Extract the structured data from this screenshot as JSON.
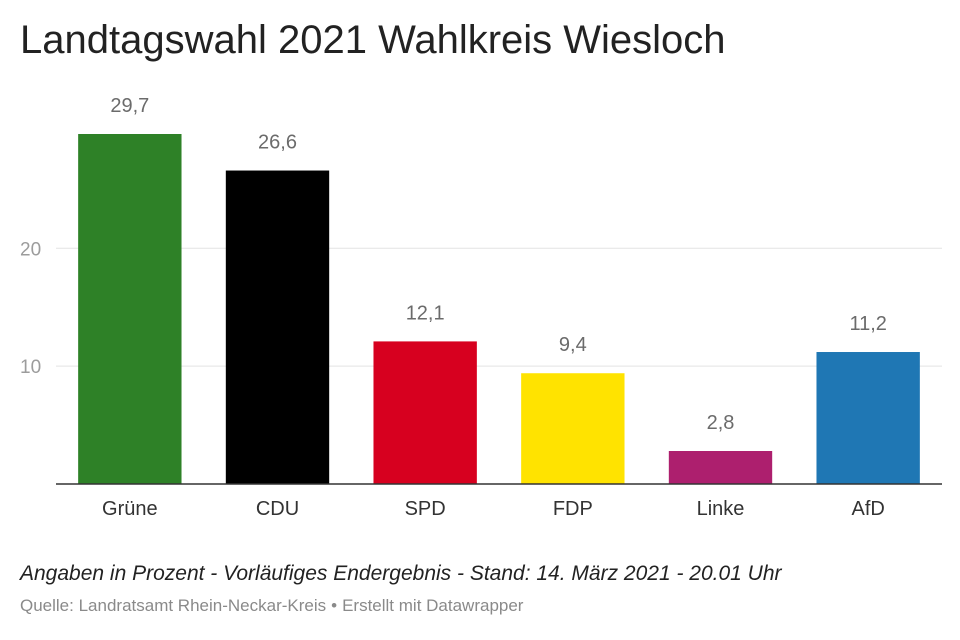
{
  "header": {
    "title": "Landtagswahl 2021 Wahlkreis Wiesloch"
  },
  "chart_data": {
    "type": "bar",
    "categories": [
      "Grüne",
      "CDU",
      "SPD",
      "FDP",
      "Linke",
      "AfD"
    ],
    "values": [
      29.7,
      26.6,
      12.1,
      9.4,
      2.8,
      11.2
    ],
    "value_labels": [
      "29,7",
      "26,6",
      "12,1",
      "9,4",
      "2,8",
      "11,2"
    ],
    "colors": [
      "#2e8127",
      "#000000",
      "#d7001f",
      "#ffe300",
      "#ad1f6e",
      "#1f77b4"
    ],
    "yticks": [
      10,
      20
    ],
    "ytick_labels": [
      "10",
      "20"
    ],
    "ylim": [
      0,
      29.7
    ],
    "grid": true,
    "title": "Landtagswahl 2021 Wahlkreis Wiesloch",
    "xlabel": "",
    "ylabel": ""
  },
  "footer": {
    "note": "Angaben in Prozent - Vorläufiges Endergebnis - Stand: 14. März 2021 - 20.01 Uhr",
    "source_text": "Quelle: Landratsamt Rhein-Neckar-Kreis",
    "separator": "•",
    "credit": "Erstellt mit Datawrapper"
  }
}
